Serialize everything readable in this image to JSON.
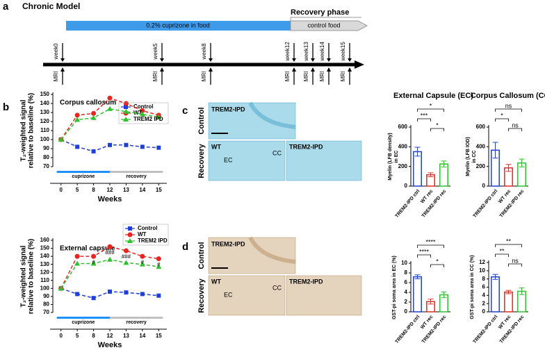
{
  "panel_labels": [
    "a",
    "b",
    "c",
    "d"
  ],
  "timeline": {
    "title": "Chronic Model",
    "recovery_phase": "Recovery phase",
    "cuprizone": "0.2% cuprizone in food",
    "control_food": "control food",
    "weeks": [
      "week0",
      "week5",
      "week8",
      "week12",
      "week13",
      "week14",
      "week15"
    ],
    "mri": "MRI"
  },
  "images": {
    "c": {
      "row_labels": [
        "Control",
        "Recovery"
      ],
      "top": "TREM2-IPD",
      "bottom_left": "WT",
      "bottom_right": "TREM2-IPD",
      "ec": "EC",
      "cc": "CC"
    },
    "d": {
      "row_labels": [
        "Control",
        "Recovery"
      ],
      "top": "TREM2-IPD",
      "bottom_left": "WT",
      "bottom_right": "TREM2-IPD",
      "ec": "EC",
      "cc": "CC"
    }
  },
  "chart_data": [
    {
      "type": "line",
      "title": "Corpus callosum",
      "xlabel": "Weeks",
      "ylabel": [
        "T₂-weighted signal",
        "relative to baseline (%)"
      ],
      "categories": [
        "0",
        "5",
        "8",
        "12",
        "13",
        "14",
        "15"
      ],
      "ylim": [
        70,
        150
      ],
      "yticks": [
        70,
        80,
        90,
        100,
        110,
        120,
        130,
        140,
        150
      ],
      "legend": "upper right",
      "periods": [
        {
          "label": "cuprizone",
          "color": "#1e90ff"
        },
        {
          "label": "recovery",
          "color": "#c0c0c0"
        }
      ],
      "series": [
        {
          "name": "Control",
          "color": "#1f3fd8",
          "marker": "square",
          "values": [
            100,
            92,
            87,
            94,
            94,
            92,
            91
          ]
        },
        {
          "name": "WT",
          "color": "#e8261f",
          "marker": "circle",
          "values": [
            100,
            127,
            129,
            146,
            140,
            132,
            127
          ]
        },
        {
          "name": "TREM2 IPD",
          "color": "#2fbf2f",
          "marker": "triangle",
          "values": [
            100,
            122,
            124,
            134,
            131,
            128,
            125
          ]
        }
      ]
    },
    {
      "type": "line",
      "title": "External capsule",
      "xlabel": "Weeks",
      "ylabel": [
        "T₂-weighted signal",
        "relative to baseline (%)"
      ],
      "categories": [
        "0",
        "5",
        "8",
        "12",
        "13",
        "14",
        "15"
      ],
      "ylim": [
        70,
        160
      ],
      "yticks": [
        70,
        80,
        90,
        100,
        110,
        120,
        130,
        140,
        150,
        160
      ],
      "legend": "upper right",
      "periods": [
        {
          "label": "cuprizone",
          "color": "#1e90ff"
        },
        {
          "label": "recovery",
          "color": "#c0c0c0"
        }
      ],
      "annotations": [
        null,
        null,
        "#",
        "###",
        "###",
        "#",
        "#"
      ],
      "series": [
        {
          "name": "Control",
          "color": "#1f3fd8",
          "marker": "square",
          "values": [
            100,
            93,
            88,
            96,
            95,
            93,
            91
          ]
        },
        {
          "name": "WT",
          "color": "#e8261f",
          "marker": "circle",
          "values": [
            100,
            140,
            140,
            152,
            147,
            140,
            137
          ]
        },
        {
          "name": "TREM2 IPD",
          "color": "#2fbf2f",
          "marker": "triangle",
          "values": [
            100,
            131,
            131,
            136,
            132,
            130,
            127
          ]
        }
      ]
    },
    {
      "type": "bar",
      "title": "External Capsule (EC)",
      "ylabel": [
        "Myelin (LFB density)",
        "in EC"
      ],
      "categories": [
        "TREM2-IPD ctrl",
        "WT rec",
        "TREM2-IPD rec"
      ],
      "colors": [
        "#1f3fd8",
        "#e8261f",
        "#2fbf2f"
      ],
      "values": [
        350,
        115,
        225
      ],
      "errors": [
        45,
        20,
        30
      ],
      "ylim": [
        0,
        600
      ],
      "yticks": [
        0,
        200,
        400,
        600
      ],
      "significance": [
        "*",
        "***",
        "*"
      ]
    },
    {
      "type": "bar",
      "title": "Corpus Callosum (CC)",
      "ylabel": [
        "Myelin (LFB IOD)",
        "in CC"
      ],
      "categories": [
        "TREM2-IPD ctrl",
        "WT rec",
        "TREM2-IPD rec"
      ],
      "colors": [
        "#1f3fd8",
        "#e8261f",
        "#2fbf2f"
      ],
      "values": [
        365,
        185,
        235
      ],
      "errors": [
        80,
        35,
        40
      ],
      "ylim": [
        0,
        600
      ],
      "yticks": [
        0,
        200,
        400,
        600
      ],
      "significance": [
        "ns",
        "*",
        "ns"
      ]
    },
    {
      "type": "bar",
      "ylabel": [
        "GST-pi soma area in EC (%)"
      ],
      "categories": [
        "TREM2-IPD ctrl",
        "WT rec",
        "TREM2-IPD rec"
      ],
      "colors": [
        "#1f3fd8",
        "#e8261f",
        "#2fbf2f"
      ],
      "values": [
        7.2,
        2.1,
        3.5
      ],
      "errors": [
        0.4,
        0.5,
        0.6
      ],
      "ylim": [
        0,
        10
      ],
      "yticks": [
        0,
        2,
        4,
        6,
        8,
        10
      ],
      "significance": [
        "****",
        "****",
        "*"
      ]
    },
    {
      "type": "bar",
      "ylabel": [
        "GST-pi soma area in CC (%)"
      ],
      "categories": [
        "TREM2-IPD ctrl",
        "WT rec",
        "TREM2-IPD rec"
      ],
      "colors": [
        "#1f3fd8",
        "#e8261f",
        "#2fbf2f"
      ],
      "values": [
        8.5,
        4.8,
        5.0
      ],
      "errors": [
        0.6,
        0.4,
        0.8
      ],
      "ylim": [
        0,
        12
      ],
      "yticks": [
        0,
        2,
        4,
        6,
        8,
        10,
        12
      ],
      "significance": [
        "**",
        "**",
        "ns"
      ]
    }
  ]
}
